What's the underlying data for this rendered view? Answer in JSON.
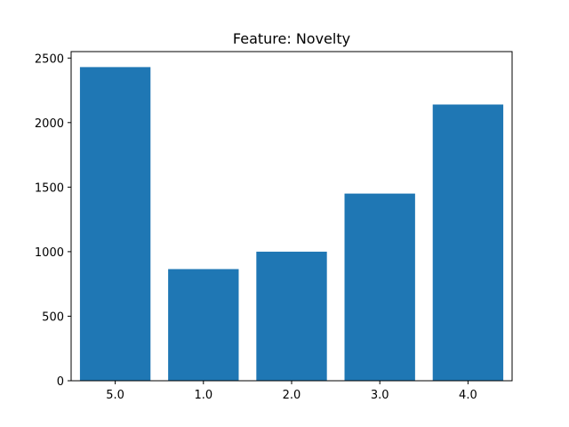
{
  "chart_data": {
    "type": "bar",
    "title": "Feature: Novelty",
    "xlabel": "",
    "ylabel": "",
    "categories": [
      "5.0",
      "1.0",
      "2.0",
      "3.0",
      "4.0"
    ],
    "values": [
      2430,
      865,
      1000,
      1450,
      2140
    ],
    "ylim": [
      0,
      2550
    ],
    "yticks": [
      0,
      500,
      1000,
      1500,
      2000,
      2500
    ],
    "bar_color": "#1f77b4",
    "grid": false,
    "legend": "none"
  }
}
